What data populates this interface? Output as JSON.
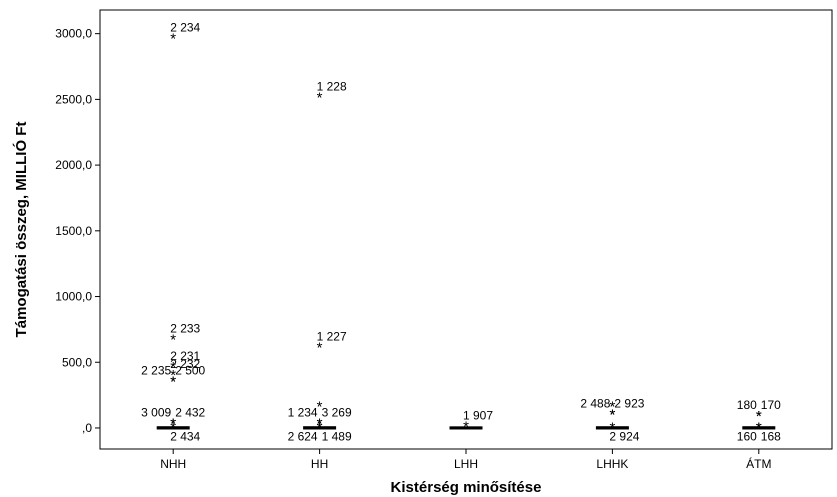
{
  "chart_data": {
    "type": "boxplot",
    "xlabel": "Kistérség minősítése",
    "ylabel": "Támogatási összeg, MILLIÓ Ft",
    "categories": [
      "NHH",
      "HH",
      "LHH",
      "LHHK",
      "ÁTM"
    ],
    "ylim": [
      -160,
      3180
    ],
    "yticks": [
      0,
      500,
      1000,
      1500,
      2000,
      2500,
      3000
    ],
    "ytick_labels": [
      ",0",
      "500,0",
      "1000,0",
      "1500,0",
      "2000,0",
      "2500,0",
      "3000,0"
    ],
    "grid": false,
    "boxes": [
      {
        "category": "NHH",
        "median": 0,
        "q1": 0,
        "q3": 2
      },
      {
        "category": "HH",
        "median": 0,
        "q1": 0,
        "q3": 2
      },
      {
        "category": "LHH",
        "median": 0,
        "q1": 0,
        "q3": 1
      },
      {
        "category": "LHHK",
        "median": 0,
        "q1": 0,
        "q3": 2
      },
      {
        "category": "ÁTM",
        "median": 0,
        "q1": 0,
        "q3": 2
      }
    ],
    "outliers": [
      {
        "category": "NHH",
        "value": 2970,
        "label": "2 234"
      },
      {
        "category": "NHH",
        "value": 680,
        "label": "2 233"
      },
      {
        "category": "NHH",
        "value": 470,
        "label": "2 231"
      },
      {
        "category": "NHH",
        "value": 410,
        "label": "2 232"
      },
      {
        "category": "NHH",
        "value": 360,
        "label": "2 235"
      },
      {
        "category": "NHH",
        "value": 360,
        "label": "2 500"
      },
      {
        "category": "NHH",
        "value": 40,
        "label": "3 009"
      },
      {
        "category": "NHH",
        "value": 40,
        "label": "2 432"
      },
      {
        "category": "NHH",
        "value": 10,
        "label": "2 434"
      },
      {
        "category": "HH",
        "value": 2520,
        "label": "1 228"
      },
      {
        "category": "HH",
        "value": 620,
        "label": "1 227"
      },
      {
        "category": "HH",
        "value": 170,
        "label": ""
      },
      {
        "category": "HH",
        "value": 40,
        "label": "1 234"
      },
      {
        "category": "HH",
        "value": 40,
        "label": "3 269"
      },
      {
        "category": "HH",
        "value": 10,
        "label": "2 624"
      },
      {
        "category": "HH",
        "value": 10,
        "label": "1 489"
      },
      {
        "category": "LHH",
        "value": 20,
        "label": "1 907"
      },
      {
        "category": "LHHK",
        "value": 170,
        "label": ""
      },
      {
        "category": "LHHK",
        "value": 110,
        "label": "2 488"
      },
      {
        "category": "LHHK",
        "value": 110,
        "label": "2 923"
      },
      {
        "category": "LHHK",
        "value": 10,
        "label": "2 924"
      },
      {
        "category": "ÁTM",
        "value": 100,
        "label": "180"
      },
      {
        "category": "ÁTM",
        "value": 100,
        "label": "170"
      },
      {
        "category": "ÁTM",
        "value": 10,
        "label": "160"
      },
      {
        "category": "ÁTM",
        "value": 10,
        "label": "168"
      }
    ]
  }
}
